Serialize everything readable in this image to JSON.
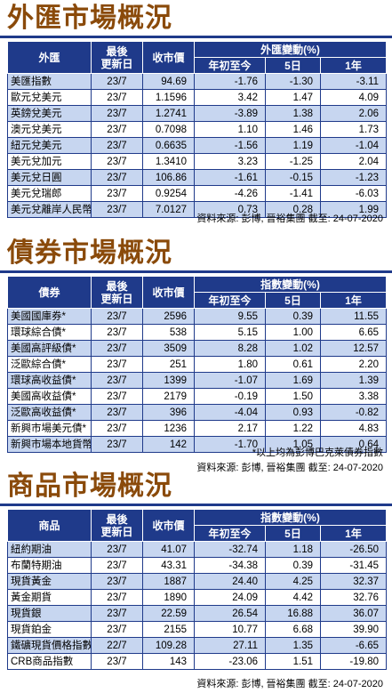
{
  "fx": {
    "title": "外匯市場概況",
    "headers": {
      "name": "外匯",
      "updated": "最後\n更新日",
      "price": "收市價",
      "change_group": "外匯變動(%)",
      "ytd": "年初至今",
      "d5": "5日",
      "y1": "1年"
    },
    "rows": [
      {
        "name": "美匯指數",
        "date": "23/7",
        "price": "94.69",
        "ytd": "-1.76",
        "d5": "-1.30",
        "y1": "-3.11"
      },
      {
        "name": "歐元兌美元",
        "date": "23/7",
        "price": "1.1596",
        "ytd": "3.42",
        "d5": "1.47",
        "y1": "4.09"
      },
      {
        "name": "英鎊兌美元",
        "date": "23/7",
        "price": "1.2741",
        "ytd": "-3.89",
        "d5": "1.38",
        "y1": "2.06"
      },
      {
        "name": "澳元兌美元",
        "date": "23/7",
        "price": "0.7098",
        "ytd": "1.10",
        "d5": "1.46",
        "y1": "1.73"
      },
      {
        "name": "紐元兌美元",
        "date": "23/7",
        "price": "0.6635",
        "ytd": "-1.56",
        "d5": "1.19",
        "y1": "-1.04"
      },
      {
        "name": "美元兌加元",
        "date": "23/7",
        "price": "1.3410",
        "ytd": "3.23",
        "d5": "-1.25",
        "y1": "2.04"
      },
      {
        "name": "美元兌日圓",
        "date": "23/7",
        "price": "106.86",
        "ytd": "-1.61",
        "d5": "-0.15",
        "y1": "-1.23"
      },
      {
        "name": "美元兌瑞郎",
        "date": "23/7",
        "price": "0.9254",
        "ytd": "-4.26",
        "d5": "-1.41",
        "y1": "-6.03"
      },
      {
        "name": "美元兌離岸人民幣",
        "date": "23/7",
        "price": "7.0127",
        "ytd": "0.73",
        "d5": "0.28",
        "y1": "1.99"
      }
    ],
    "source": "資料來源: 彭博, 晉裕集團 截至: 24-07-2020"
  },
  "bonds": {
    "title": "債券市場概況",
    "headers": {
      "name": "債券",
      "updated": "最後\n更新日",
      "price": "收市價",
      "change_group": "指數變動(%)",
      "ytd": "年初至今",
      "d5": "5日",
      "y1": "1年"
    },
    "rows": [
      {
        "name": "美國國庫券*",
        "date": "23/7",
        "price": "2596",
        "ytd": "9.55",
        "d5": "0.39",
        "y1": "11.55"
      },
      {
        "name": "環球綜合債*",
        "date": "23/7",
        "price": "538",
        "ytd": "5.15",
        "d5": "1.00",
        "y1": "6.65"
      },
      {
        "name": "美國高評級債*",
        "date": "23/7",
        "price": "3509",
        "ytd": "8.28",
        "d5": "1.02",
        "y1": "12.57"
      },
      {
        "name": "泛歐綜合債*",
        "date": "23/7",
        "price": "251",
        "ytd": "1.80",
        "d5": "0.61",
        "y1": "2.20"
      },
      {
        "name": "環球高收益債*",
        "date": "23/7",
        "price": "1399",
        "ytd": "-1.07",
        "d5": "1.69",
        "y1": "1.39"
      },
      {
        "name": "美國高收益債*",
        "date": "23/7",
        "price": "2179",
        "ytd": "-0.19",
        "d5": "1.50",
        "y1": "3.38"
      },
      {
        "name": "泛歐高收益債*",
        "date": "23/7",
        "price": "396",
        "ytd": "-4.04",
        "d5": "0.93",
        "y1": "-0.82"
      },
      {
        "name": "新興市場美元債*",
        "date": "23/7",
        "price": "1236",
        "ytd": "2.17",
        "d5": "1.22",
        "y1": "4.83"
      },
      {
        "name": "新興市場本地貨幣*",
        "date": "23/7",
        "price": "142",
        "ytd": "-1.70",
        "d5": "1.05",
        "y1": "0.64"
      }
    ],
    "note": "*以上均為彭博巴克萊債券指數",
    "source": "資料來源: 彭博, 晉裕集團 截至: 24-07-2020"
  },
  "commodities": {
    "title": "商品市場概況",
    "headers": {
      "name": "商品",
      "updated": "最後\n更新日",
      "price": "收市價",
      "change_group": "指數變動(%)",
      "ytd": "年初至今",
      "d5": "5日",
      "y1": "1年"
    },
    "rows": [
      {
        "name": "紐約期油",
        "date": "23/7",
        "price": "41.07",
        "ytd": "-32.74",
        "d5": "1.18",
        "y1": "-26.50"
      },
      {
        "name": "布蘭特期油",
        "date": "23/7",
        "price": "43.31",
        "ytd": "-34.38",
        "d5": "0.39",
        "y1": "-31.45"
      },
      {
        "name": "現貨黃金",
        "date": "23/7",
        "price": "1887",
        "ytd": "24.40",
        "d5": "4.25",
        "y1": "32.37"
      },
      {
        "name": "黃金期貨",
        "date": "23/7",
        "price": "1890",
        "ytd": "24.09",
        "d5": "4.42",
        "y1": "32.76"
      },
      {
        "name": "現貨銀",
        "date": "23/7",
        "price": "22.59",
        "ytd": "26.54",
        "d5": "16.88",
        "y1": "36.07"
      },
      {
        "name": "現貨鉑金",
        "date": "23/7",
        "price": "2155",
        "ytd": "10.77",
        "d5": "6.68",
        "y1": "39.90"
      },
      {
        "name": "鐵礦現貨價格指數",
        "date": "22/7",
        "price": "109.28",
        "ytd": "27.11",
        "d5": "1.35",
        "y1": "-6.65"
      },
      {
        "name": "CRB商品指數",
        "date": "23/7",
        "price": "143",
        "ytd": "-23.06",
        "d5": "1.51",
        "y1": "-19.80"
      }
    ],
    "source": "資料來源: 彭博, 晉裕集團 截至: 24-07-2020"
  },
  "colors": {
    "title": "#8a4a0a",
    "header_bg": "#1f3a8a",
    "alt_row": "#c7d6f0"
  }
}
